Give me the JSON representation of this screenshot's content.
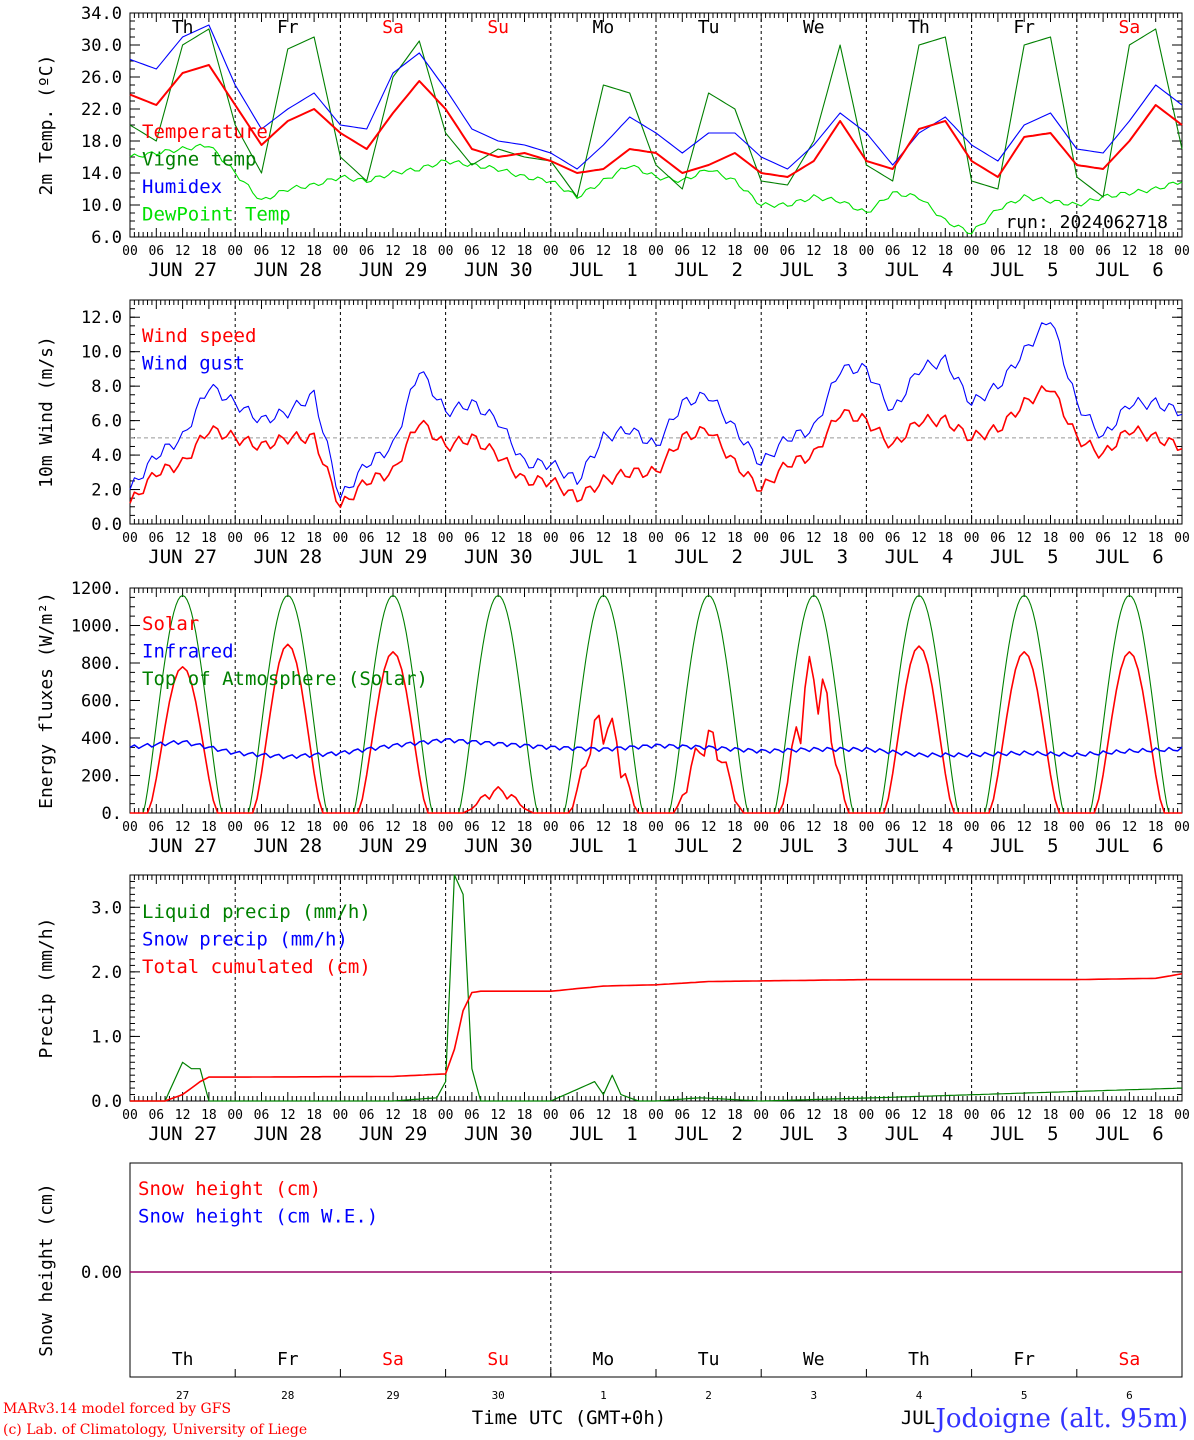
{
  "chart_data": [
    {
      "type": "line",
      "ylabel": "2m Temp. (ºC)",
      "ylim": [
        6,
        34
      ],
      "yticks": [
        "6.0",
        "10.0",
        "14.0",
        "18.0",
        "22.0",
        "26.0",
        "30.0",
        "34.0"
      ],
      "hours": [
        0,
        6,
        12,
        18,
        24,
        30,
        36,
        42,
        48,
        54,
        60,
        66,
        72,
        78,
        84,
        90,
        96,
        102,
        108,
        114,
        120,
        126,
        132,
        138,
        144,
        150,
        156,
        162,
        168,
        174,
        180,
        186,
        192,
        198,
        204,
        210,
        216,
        222,
        228,
        234,
        240
      ],
      "series": [
        {
          "name": "Temperature",
          "color": "#ff0000",
          "values": [
            23.8,
            22.5,
            26.5,
            27.5,
            22.5,
            17.5,
            20.5,
            22.0,
            19.0,
            17.0,
            21.5,
            25.5,
            22.0,
            17.0,
            16.0,
            16.5,
            15.5,
            14.0,
            14.5,
            17.0,
            16.5,
            14.0,
            15.0,
            16.5,
            14.0,
            13.5,
            15.5,
            20.5,
            15.5,
            14.5,
            19.5,
            20.5,
            15.5,
            13.5,
            18.5,
            19.0,
            15.0,
            14.5,
            18.0,
            22.5,
            20.0
          ]
        },
        {
          "name": "Vigne temp",
          "color": "#008000",
          "values": [
            20.0,
            18.0,
            30.0,
            32.0,
            20.0,
            14.0,
            29.5,
            31.0,
            16.0,
            13.0,
            26.0,
            30.5,
            19.0,
            15.0,
            17.0,
            16.0,
            15.5,
            11.0,
            25.0,
            24.0,
            15.0,
            12.0,
            24.0,
            22.0,
            13.0,
            12.5,
            18.0,
            30.0,
            15.0,
            13.0,
            30.0,
            31.0,
            13.0,
            12.0,
            30.0,
            31.0,
            13.5,
            11.0,
            30.0,
            32.0,
            17.0
          ]
        },
        {
          "name": "Humidex",
          "color": "#0000ff",
          "values": [
            28.2,
            27.0,
            31.0,
            32.5,
            25.0,
            19.5,
            22.0,
            24.0,
            20.0,
            19.5,
            26.5,
            29.0,
            24.5,
            19.5,
            18.0,
            17.5,
            16.5,
            14.5,
            17.5,
            21.0,
            19.0,
            16.5,
            19.0,
            19.0,
            16.0,
            14.5,
            17.5,
            21.5,
            19.0,
            15.0,
            19.0,
            21.0,
            17.5,
            15.5,
            20.0,
            21.5,
            17.0,
            16.5,
            20.5,
            25.0,
            22.5
          ]
        },
        {
          "name": "DewPoint Temp",
          "color": "#00e000",
          "values": [
            16.0,
            16.5,
            17.0,
            17.5,
            14.0,
            10.5,
            12.0,
            12.5,
            13.5,
            13.0,
            14.0,
            14.5,
            15.5,
            15.0,
            14.5,
            13.5,
            13.0,
            11.0,
            13.0,
            15.0,
            13.5,
            13.0,
            14.5,
            13.0,
            10.0,
            10.0,
            11.0,
            10.5,
            9.0,
            11.5,
            11.0,
            8.0,
            6.5,
            9.5,
            11.0,
            10.5,
            10.0,
            11.0,
            11.5,
            12.0,
            13.0
          ]
        }
      ],
      "day_labels": [
        {
          "text": "Th",
          "color": "#000000"
        },
        {
          "text": "Fr",
          "color": "#000000"
        },
        {
          "text": "Sa",
          "color": "#ff0000"
        },
        {
          "text": "Su",
          "color": "#ff0000"
        },
        {
          "text": "Mo",
          "color": "#000000"
        },
        {
          "text": "Tu",
          "color": "#000000"
        },
        {
          "text": "We",
          "color": "#000000"
        },
        {
          "text": "Th",
          "color": "#000000"
        },
        {
          "text": "Fr",
          "color": "#000000"
        },
        {
          "text": "Sa",
          "color": "#ff0000"
        }
      ],
      "annotation": "run: 2024062718"
    },
    {
      "type": "line",
      "ylabel": "10m Wind (m/s)",
      "ylim": [
        0,
        13
      ],
      "yticks": [
        "0.0",
        "2.0",
        "4.0",
        "6.0",
        "8.0",
        "10.0",
        "12.0"
      ],
      "reference_line": 5.0,
      "hours": [
        0,
        6,
        12,
        18,
        24,
        30,
        36,
        42,
        48,
        54,
        60,
        66,
        72,
        78,
        84,
        90,
        96,
        102,
        108,
        114,
        120,
        126,
        132,
        138,
        144,
        150,
        156,
        162,
        168,
        174,
        180,
        186,
        192,
        198,
        204,
        210,
        216,
        222,
        228,
        234,
        240
      ],
      "series": [
        {
          "name": "Wind speed",
          "color": "#ff0000",
          "values": [
            1.2,
            3.0,
            3.5,
            5.5,
            5.0,
            4.5,
            5.0,
            5.0,
            1.0,
            2.5,
            3.0,
            6.0,
            4.5,
            5.0,
            4.0,
            2.5,
            2.5,
            1.5,
            2.5,
            3.0,
            3.0,
            5.0,
            5.5,
            3.5,
            2.0,
            3.5,
            4.0,
            6.5,
            6.0,
            4.5,
            6.0,
            6.0,
            5.0,
            5.5,
            7.0,
            8.0,
            5.0,
            4.0,
            5.5,
            5.0,
            4.5
          ]
        },
        {
          "name": "Wind gust",
          "color": "#0000ff",
          "values": [
            2.0,
            4.0,
            5.0,
            8.0,
            7.0,
            6.0,
            6.5,
            7.5,
            1.5,
            3.5,
            4.5,
            9.0,
            6.5,
            7.0,
            6.0,
            3.5,
            3.5,
            2.5,
            5.0,
            5.5,
            4.5,
            7.0,
            7.5,
            5.5,
            3.5,
            5.0,
            5.5,
            9.0,
            9.0,
            6.5,
            9.0,
            9.5,
            7.0,
            8.0,
            10.0,
            12.0,
            7.0,
            5.0,
            7.0,
            7.0,
            6.5
          ]
        }
      ]
    },
    {
      "type": "line",
      "ylabel": "Energy fluxes (W/m²)",
      "ylim": [
        0,
        1200
      ],
      "yticks": [
        "0.",
        "200.",
        "400.",
        "600.",
        "800.",
        "1000.",
        "1200."
      ],
      "series": [
        {
          "name": "Solar",
          "color": "#ff0000",
          "daily_peaks": [
            780,
            900,
            860,
            140,
            570,
            460,
            860,
            890,
            860,
            860
          ]
        },
        {
          "name": "Infrared",
          "color": "#0000ff",
          "hours": [
            0,
            12,
            24,
            36,
            48,
            60,
            72,
            84,
            96,
            108,
            120,
            132,
            144,
            156,
            168,
            180,
            192,
            204,
            216,
            228,
            240
          ],
          "values": [
            350,
            380,
            320,
            300,
            320,
            360,
            390,
            370,
            350,
            340,
            360,
            350,
            330,
            340,
            340,
            310,
            310,
            320,
            310,
            330,
            340
          ]
        },
        {
          "name": "Top of Atmosphere (Solar)",
          "color": "#008000",
          "daily_peak": 1160
        }
      ]
    },
    {
      "type": "line",
      "ylabel": "Precip (mm/h)",
      "ylim": [
        0,
        3.5
      ],
      "yticks": [
        "0.0",
        "1.0",
        "2.0",
        "3.0"
      ],
      "series": [
        {
          "name": "Liquid precip (mm/h)",
          "color": "#008000",
          "hours": [
            0,
            8,
            10,
            12,
            14,
            16,
            18,
            20,
            24,
            60,
            70,
            72,
            74,
            76,
            78,
            80,
            82,
            84,
            96,
            106,
            108,
            110,
            112,
            116,
            120,
            130,
            144,
            170,
            240
          ],
          "values": [
            0,
            0,
            0.3,
            0.6,
            0.5,
            0.5,
            0,
            0,
            0,
            0,
            0.05,
            0.3,
            3.5,
            3.2,
            0.5,
            0,
            0,
            0,
            0,
            0.3,
            0.1,
            0.4,
            0.1,
            0,
            0,
            0.05,
            0,
            0.05,
            0.2
          ]
        },
        {
          "name": "Snow precip (mm/h)",
          "color": "#0000ff",
          "values": []
        },
        {
          "name": "Total cumulated (cm)",
          "color": "#ff0000",
          "hours": [
            0,
            8,
            12,
            16,
            18,
            24,
            60,
            72,
            74,
            76,
            78,
            80,
            84,
            96,
            108,
            120,
            132,
            168,
            192,
            216,
            234,
            240
          ],
          "values": [
            0,
            0,
            0.1,
            0.3,
            0.37,
            0.37,
            0.38,
            0.42,
            0.8,
            1.4,
            1.68,
            1.7,
            1.7,
            1.7,
            1.78,
            1.8,
            1.85,
            1.88,
            1.88,
            1.88,
            1.9,
            1.97
          ]
        }
      ]
    },
    {
      "type": "line",
      "ylabel": "Snow height (cm)",
      "yticks": [
        "0.00"
      ],
      "series": [
        {
          "name": "Snow height (cm)",
          "color": "#ff0000",
          "values": [
            0,
            0
          ]
        },
        {
          "name": "Snow height (cm W.E.)",
          "color": "#0000ff",
          "values": [
            0,
            0
          ]
        }
      ],
      "day_labels": [
        {
          "text": "Th",
          "color": "#000000"
        },
        {
          "text": "Fr",
          "color": "#000000"
        },
        {
          "text": "Sa",
          "color": "#ff0000"
        },
        {
          "text": "Su",
          "color": "#ff0000"
        },
        {
          "text": "Mo",
          "color": "#000000"
        },
        {
          "text": "Tu",
          "color": "#000000"
        },
        {
          "text": "We",
          "color": "#000000"
        },
        {
          "text": "Th",
          "color": "#000000"
        },
        {
          "text": "Fr",
          "color": "#000000"
        },
        {
          "text": "Sa",
          "color": "#ff0000"
        }
      ],
      "day_numbers": [
        "27",
        "28",
        "29",
        "30",
        "1",
        "2",
        "3",
        "4",
        "5",
        "6"
      ]
    }
  ],
  "x_axis": {
    "hour_ticks": [
      "00",
      "06",
      "12",
      "18"
    ],
    "end_tick": "00",
    "date_labels": [
      "JUN 27",
      "JUN 28",
      "JUN 29",
      "JUN 30",
      "JUL  1",
      "JUL  2",
      "JUL  3",
      "JUL  4",
      "JUL  5",
      "JUL  6"
    ],
    "bottom_label": "Time UTC (GMT+0h)",
    "month_label": "JUL"
  },
  "footer": {
    "credit_line1": "MARv3.14 model forced by GFS",
    "credit_line2": "(c) Lab. of Climatology, University of Liege",
    "location": "Jodoigne (alt. 95m)"
  }
}
